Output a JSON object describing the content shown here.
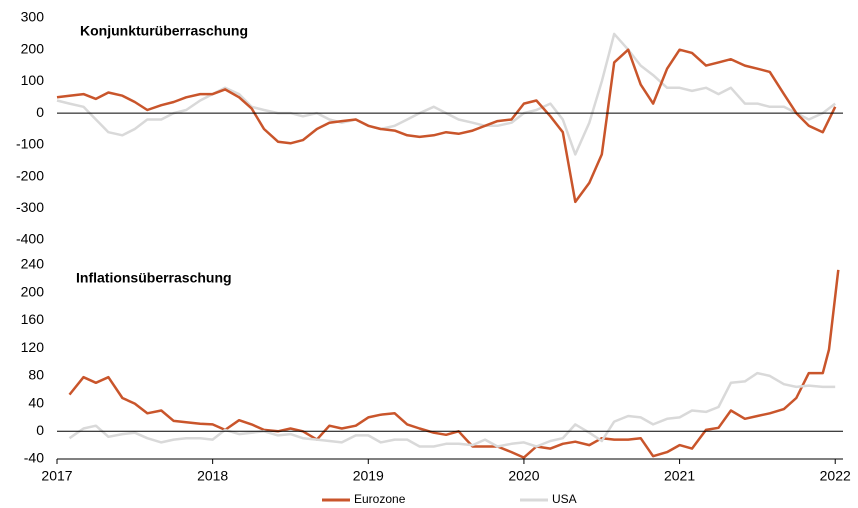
{
  "chart_data": [
    {
      "type": "line",
      "title": "Konjunkturüberraschung",
      "x": [
        2017,
        2017.08,
        2017.17,
        2017.25,
        2017.33,
        2017.42,
        2017.5,
        2017.58,
        2017.67,
        2017.75,
        2017.83,
        2017.92,
        2018,
        2018.08,
        2018.17,
        2018.25,
        2018.33,
        2018.42,
        2018.5,
        2018.58,
        2018.67,
        2018.75,
        2018.83,
        2018.92,
        2019,
        2019.08,
        2019.17,
        2019.25,
        2019.33,
        2019.42,
        2019.5,
        2019.58,
        2019.67,
        2019.75,
        2019.83,
        2019.92,
        2020,
        2020.08,
        2020.17,
        2020.25,
        2020.33,
        2020.42,
        2020.5,
        2020.58,
        2020.67,
        2020.75,
        2020.83,
        2020.92,
        2021,
        2021.08,
        2021.17,
        2021.25,
        2021.33,
        2021.42,
        2021.5,
        2021.58,
        2021.67,
        2021.75,
        2021.83,
        2021.92,
        2022
      ],
      "xlim": [
        2017,
        2022.05
      ],
      "ylim": [
        -400,
        300
      ],
      "yticks": [
        300,
        200,
        100,
        0,
        -100,
        -200,
        -300,
        -400
      ],
      "series": [
        {
          "color": "#d9d9d9",
          "values": [
            40,
            30,
            20,
            -20,
            -60,
            -70,
            -50,
            -20,
            -20,
            0,
            10,
            40,
            60,
            80,
            60,
            20,
            10,
            0,
            0,
            -10,
            0,
            -20,
            -30,
            -20,
            -40,
            -50,
            -40,
            -20,
            0,
            20,
            0,
            -20,
            -30,
            -40,
            -40,
            -30,
            0,
            10,
            30,
            -20,
            -130,
            -30,
            100,
            250,
            200,
            150,
            120,
            80,
            80,
            70,
            80,
            60,
            80,
            30,
            30,
            20,
            20,
            0,
            -20,
            0,
            30
          ]
        },
        {
          "color": "#c9552b",
          "values": [
            50,
            55,
            60,
            45,
            65,
            55,
            35,
            10,
            25,
            35,
            50,
            60,
            60,
            75,
            50,
            15,
            -50,
            -90,
            -95,
            -85,
            -50,
            -30,
            -25,
            -20,
            -40,
            -50,
            -55,
            -70,
            -75,
            -70,
            -60,
            -65,
            -55,
            -40,
            -25,
            -20,
            30,
            40,
            -10,
            -60,
            -280,
            -220,
            -130,
            160,
            200,
            90,
            30,
            140,
            200,
            190,
            150,
            160,
            170,
            150,
            140,
            130,
            60,
            0,
            -40,
            -60,
            20
          ]
        }
      ]
    },
    {
      "type": "line",
      "title": "Inflationsüberraschung",
      "xlim": [
        2017,
        2022.05
      ],
      "xticks": [
        2017,
        2018,
        2019,
        2020,
        2021,
        2022
      ],
      "ylim": [
        -40,
        240
      ],
      "yticks": [
        240,
        200,
        160,
        120,
        80,
        40,
        0,
        -40
      ],
      "series": [
        {
          "name": "Eurozone",
          "color": "#c9552b",
          "x": [
            2017.08,
            2017.17,
            2017.25,
            2017.33,
            2017.42,
            2017.5,
            2017.58,
            2017.67,
            2017.75,
            2017.83,
            2017.92,
            2018,
            2018.08,
            2018.17,
            2018.25,
            2018.33,
            2018.42,
            2018.5,
            2018.58,
            2018.67,
            2018.75,
            2018.83,
            2018.92,
            2019,
            2019.08,
            2019.17,
            2019.25,
            2019.33,
            2019.42,
            2019.5,
            2019.58,
            2019.67,
            2019.75,
            2019.83,
            2019.92,
            2020,
            2020.08,
            2020.17,
            2020.25,
            2020.33,
            2020.42,
            2020.5,
            2020.58,
            2020.67,
            2020.75,
            2020.83,
            2020.92,
            2021,
            2021.08,
            2021.17,
            2021.25,
            2021.33,
            2021.42,
            2021.5,
            2021.58,
            2021.67,
            2021.75,
            2021.83,
            2021.92,
            2021.96,
            2022.02
          ],
          "values": [
            53,
            78,
            70,
            78,
            48,
            40,
            26,
            30,
            15,
            13,
            11,
            10,
            2,
            16,
            10,
            2,
            0,
            4,
            0,
            -12,
            8,
            4,
            8,
            20,
            24,
            26,
            10,
            4,
            -2,
            -5,
            0,
            -22,
            -22,
            -22,
            -30,
            -38,
            -22,
            -25,
            -18,
            -15,
            -20,
            -10,
            -12,
            -12,
            -10,
            -36,
            -30,
            -20,
            -25,
            2,
            5,
            30,
            18,
            22,
            26,
            32,
            48,
            84,
            84,
            118,
            233
          ]
        },
        {
          "name": "USA",
          "color": "#d9d9d9",
          "x": [
            2017.08,
            2017.17,
            2017.25,
            2017.33,
            2017.42,
            2017.5,
            2017.58,
            2017.67,
            2017.75,
            2017.83,
            2017.92,
            2018,
            2018.08,
            2018.17,
            2018.25,
            2018.33,
            2018.42,
            2018.5,
            2018.58,
            2018.67,
            2018.75,
            2018.83,
            2018.92,
            2019,
            2019.08,
            2019.17,
            2019.25,
            2019.33,
            2019.42,
            2019.5,
            2019.58,
            2019.67,
            2019.75,
            2019.83,
            2019.92,
            2020,
            2020.08,
            2020.17,
            2020.25,
            2020.33,
            2020.42,
            2020.5,
            2020.58,
            2020.67,
            2020.75,
            2020.83,
            2020.92,
            2021,
            2021.08,
            2021.17,
            2021.25,
            2021.33,
            2021.42,
            2021.5,
            2021.58,
            2021.67,
            2021.75,
            2021.83,
            2021.92,
            2022
          ],
          "values": [
            -10,
            4,
            8,
            -8,
            -4,
            -2,
            -10,
            -16,
            -12,
            -10,
            -10,
            -12,
            2,
            -4,
            -2,
            0,
            -6,
            -4,
            -10,
            -12,
            -14,
            -16,
            -6,
            -6,
            -16,
            -12,
            -12,
            -22,
            -22,
            -18,
            -18,
            -20,
            -12,
            -22,
            -18,
            -16,
            -22,
            -14,
            -10,
            10,
            -2,
            -14,
            14,
            22,
            20,
            10,
            18,
            20,
            30,
            28,
            35,
            70,
            72,
            84,
            80,
            68,
            64,
            66,
            64,
            64
          ]
        }
      ]
    }
  ]
}
